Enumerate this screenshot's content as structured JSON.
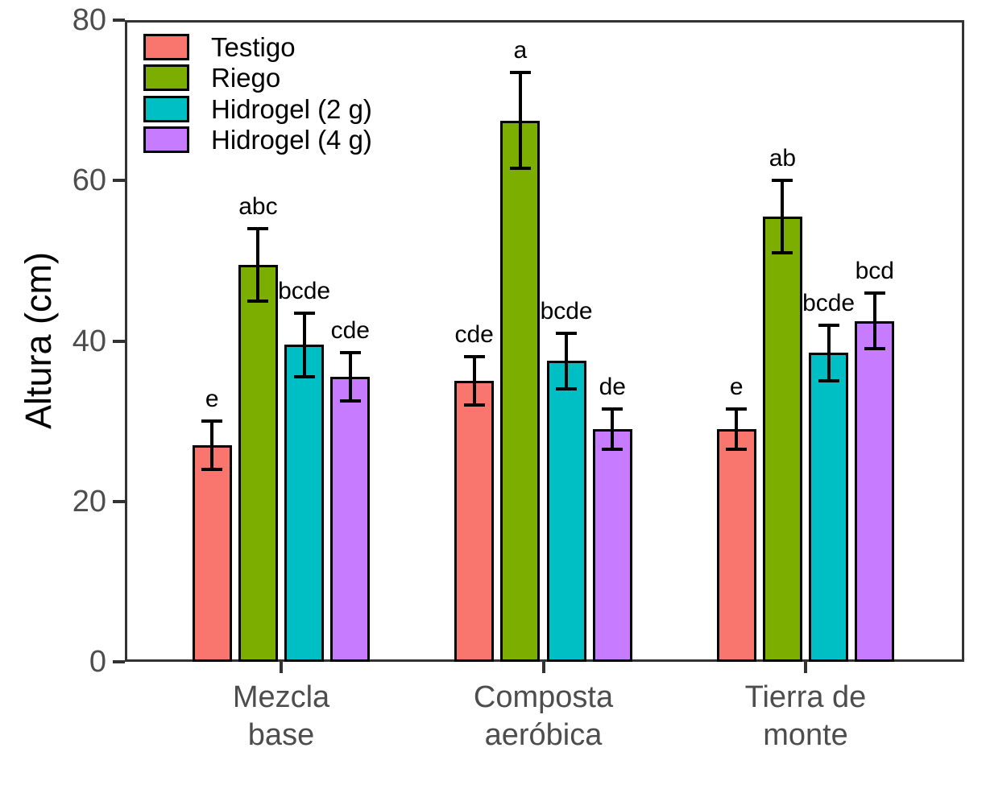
{
  "chart_data": {
    "type": "bar",
    "title": "",
    "xlabel": "",
    "ylabel": "Altura (cm)",
    "ylim": [
      0,
      80
    ],
    "yticks": [
      0,
      20,
      40,
      60,
      80
    ],
    "grid": "off",
    "legend_position": "inside-top-left",
    "categories": [
      {
        "lines": [
          "Mezcla",
          "base"
        ]
      },
      {
        "lines": [
          "Composta",
          "aeróbica"
        ]
      },
      {
        "lines": [
          "Tierra de",
          "monte"
        ]
      }
    ],
    "series": [
      {
        "name": "Testigo",
        "color": "#F8766D",
        "values": [
          27,
          35,
          29
        ],
        "errors": [
          3,
          3,
          2.5
        ],
        "letters": [
          "e",
          "cde",
          "e"
        ]
      },
      {
        "name": "Riego",
        "color": "#7CAE00",
        "values": [
          49.5,
          67.5,
          55.5
        ],
        "errors": [
          4.5,
          6,
          4.5
        ],
        "letters": [
          "abc",
          "a",
          "ab"
        ]
      },
      {
        "name": "Hidrogel (2 g)",
        "color": "#00BFC4",
        "values": [
          39.5,
          37.5,
          38.5
        ],
        "errors": [
          4,
          3.5,
          3.5
        ],
        "letters": [
          "bcde",
          "bcde",
          "bcde"
        ]
      },
      {
        "name": "Hidrogel (4 g)",
        "color": "#C77CFF",
        "values": [
          35.5,
          29,
          42.5
        ],
        "errors": [
          3,
          2.5,
          3.5
        ],
        "letters": [
          "cde",
          "de",
          "bcd"
        ]
      }
    ],
    "colors": {
      "axis_line": "#333333",
      "tick_text": "#4d4d4d",
      "bar_outline": "#000000",
      "error_bar": "#000000",
      "letter_text": "#000000"
    }
  }
}
